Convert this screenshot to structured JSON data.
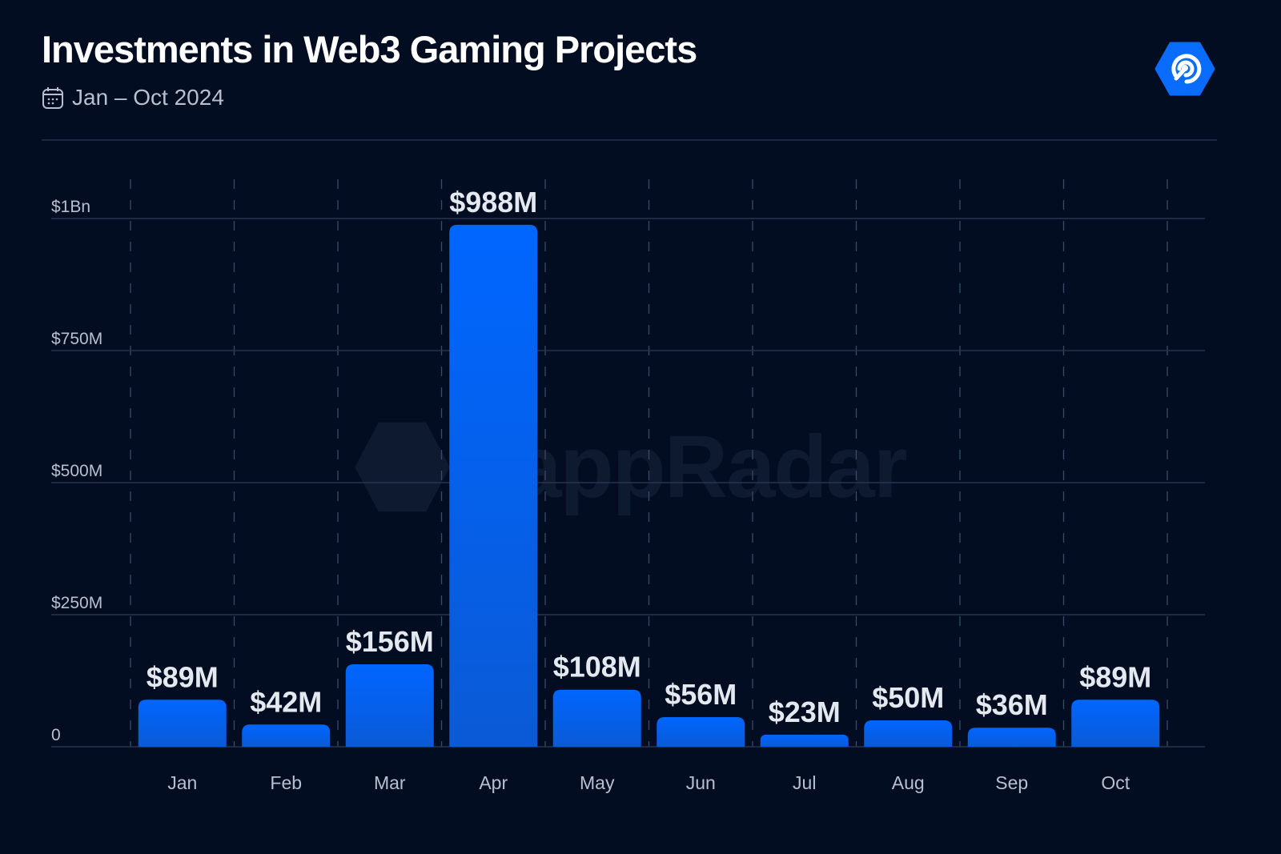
{
  "header": {
    "title": "Investments in Web3 Gaming Projects",
    "date_range": "Jan – Oct 2024",
    "date_icon": "calendar-icon",
    "logo_icon": "dappradar-logo-icon"
  },
  "watermark": {
    "text": "dappRadar"
  },
  "colors": {
    "background": "#020d22",
    "bar": "#0066ff",
    "bar_bottom": "#0a5ad6",
    "grid": "#2a3a55"
  },
  "chart_data": {
    "type": "bar",
    "title": "Investments in Web3 Gaming Projects",
    "xlabel": "",
    "ylabel": "",
    "categories": [
      "Jan",
      "Feb",
      "Mar",
      "Apr",
      "May",
      "Jun",
      "Jul",
      "Aug",
      "Sep",
      "Oct"
    ],
    "values": [
      89,
      42,
      156,
      988,
      108,
      56,
      23,
      50,
      36,
      89
    ],
    "unit": "USD millions",
    "data_labels": [
      "$89M",
      "$42M",
      "$156M",
      "$988M",
      "$108M",
      "$56M",
      "$23M",
      "$50M",
      "$36M",
      "$89M"
    ],
    "ylim": [
      0,
      1000
    ],
    "yticks": [
      0,
      250,
      500,
      750,
      1000
    ],
    "ytick_labels": [
      "0",
      "$250M",
      "$500M",
      "$750M",
      "$1Bn"
    ],
    "grid": {
      "horizontal": true,
      "vertical": "dashed"
    },
    "legend": "none"
  }
}
